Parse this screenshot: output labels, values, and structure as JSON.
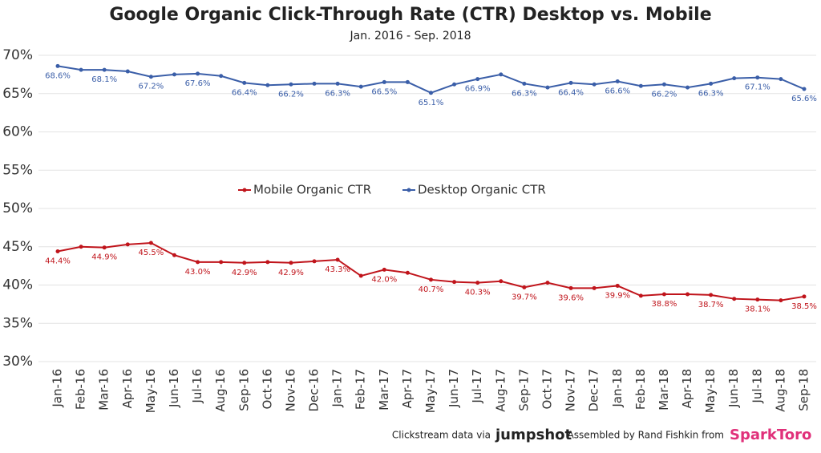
{
  "chart_data": {
    "type": "line",
    "title": "Google Organic Click-Through Rate (CTR) Desktop vs. Mobile",
    "subtitle": "Jan. 2016 - Sep. 2018",
    "categories": [
      "Jan-16",
      "Feb-16",
      "Mar-16",
      "Apr-16",
      "May-16",
      "Jun-16",
      "Jul-16",
      "Aug-16",
      "Sep-16",
      "Oct-16",
      "Nov-16",
      "Dec-16",
      "Jan-17",
      "Feb-17",
      "Mar-17",
      "Apr-17",
      "May-17",
      "Jun-17",
      "Jul-17",
      "Aug-17",
      "Sep-17",
      "Oct-17",
      "Nov-17",
      "Dec-17",
      "Jan-18",
      "Feb-18",
      "Mar-18",
      "Apr-18",
      "May-18",
      "Jun-18",
      "Jul-18",
      "Aug-18",
      "Sep-18"
    ],
    "series": [
      {
        "name": "Mobile Organic CTR",
        "color": "#c0141b",
        "values": [
          44.4,
          45.0,
          44.9,
          45.3,
          45.5,
          43.9,
          43.0,
          43.0,
          42.9,
          43.0,
          42.9,
          43.1,
          43.3,
          41.2,
          42.0,
          41.6,
          40.7,
          40.4,
          40.3,
          40.5,
          39.7,
          40.3,
          39.6,
          39.6,
          39.9,
          38.6,
          38.8,
          38.8,
          38.7,
          38.2,
          38.1,
          38.0,
          38.5
        ],
        "value_labels": [
          "44.4%",
          null,
          "44.9%",
          null,
          "45.5%",
          null,
          "43.0%",
          null,
          "42.9%",
          null,
          "42.9%",
          null,
          "43.3%",
          null,
          "42.0%",
          null,
          "40.7%",
          null,
          "40.3%",
          null,
          "39.7%",
          null,
          "39.6%",
          null,
          "39.9%",
          null,
          "38.8%",
          null,
          "38.7%",
          null,
          "38.1%",
          null,
          "38.5%"
        ]
      },
      {
        "name": "Desktop Organic CTR",
        "color": "#3a5ea8",
        "values": [
          68.6,
          68.1,
          68.1,
          67.9,
          67.2,
          67.5,
          67.6,
          67.3,
          66.4,
          66.1,
          66.2,
          66.3,
          66.3,
          65.9,
          66.5,
          66.5,
          65.1,
          66.2,
          66.9,
          67.5,
          66.3,
          65.8,
          66.4,
          66.2,
          66.6,
          66.0,
          66.2,
          65.8,
          66.3,
          67.0,
          67.1,
          66.9,
          65.6
        ],
        "value_labels": [
          "68.6%",
          null,
          "68.1%",
          null,
          "67.2%",
          null,
          "67.6%",
          null,
          "66.4%",
          null,
          "66.2%",
          null,
          "66.3%",
          null,
          "66.5%",
          null,
          "65.1%",
          null,
          "66.9%",
          null,
          "66.3%",
          null,
          "66.4%",
          null,
          "66.6%",
          null,
          "66.2%",
          null,
          "66.3%",
          null,
          "67.1%",
          null,
          "65.6%"
        ]
      }
    ],
    "ylim": [
      30,
      70
    ],
    "yticks": [
      {
        "value": 30,
        "label": "30%"
      },
      {
        "value": 35,
        "label": "35%"
      },
      {
        "value": 40,
        "label": "40%"
      },
      {
        "value": 45,
        "label": "45%"
      },
      {
        "value": 50,
        "label": "50%"
      },
      {
        "value": 55,
        "label": "55%"
      },
      {
        "value": 60,
        "label": "60%"
      },
      {
        "value": 65,
        "label": "65%"
      },
      {
        "value": 70,
        "label": "70%"
      }
    ],
    "grid": true,
    "legend": "center"
  },
  "footer": {
    "source_text": "Clickstream data via",
    "source_brand": "jumpshot",
    "credit_text": "Assembled by Rand Fishkin from",
    "credit_brand": "SparkToro"
  }
}
